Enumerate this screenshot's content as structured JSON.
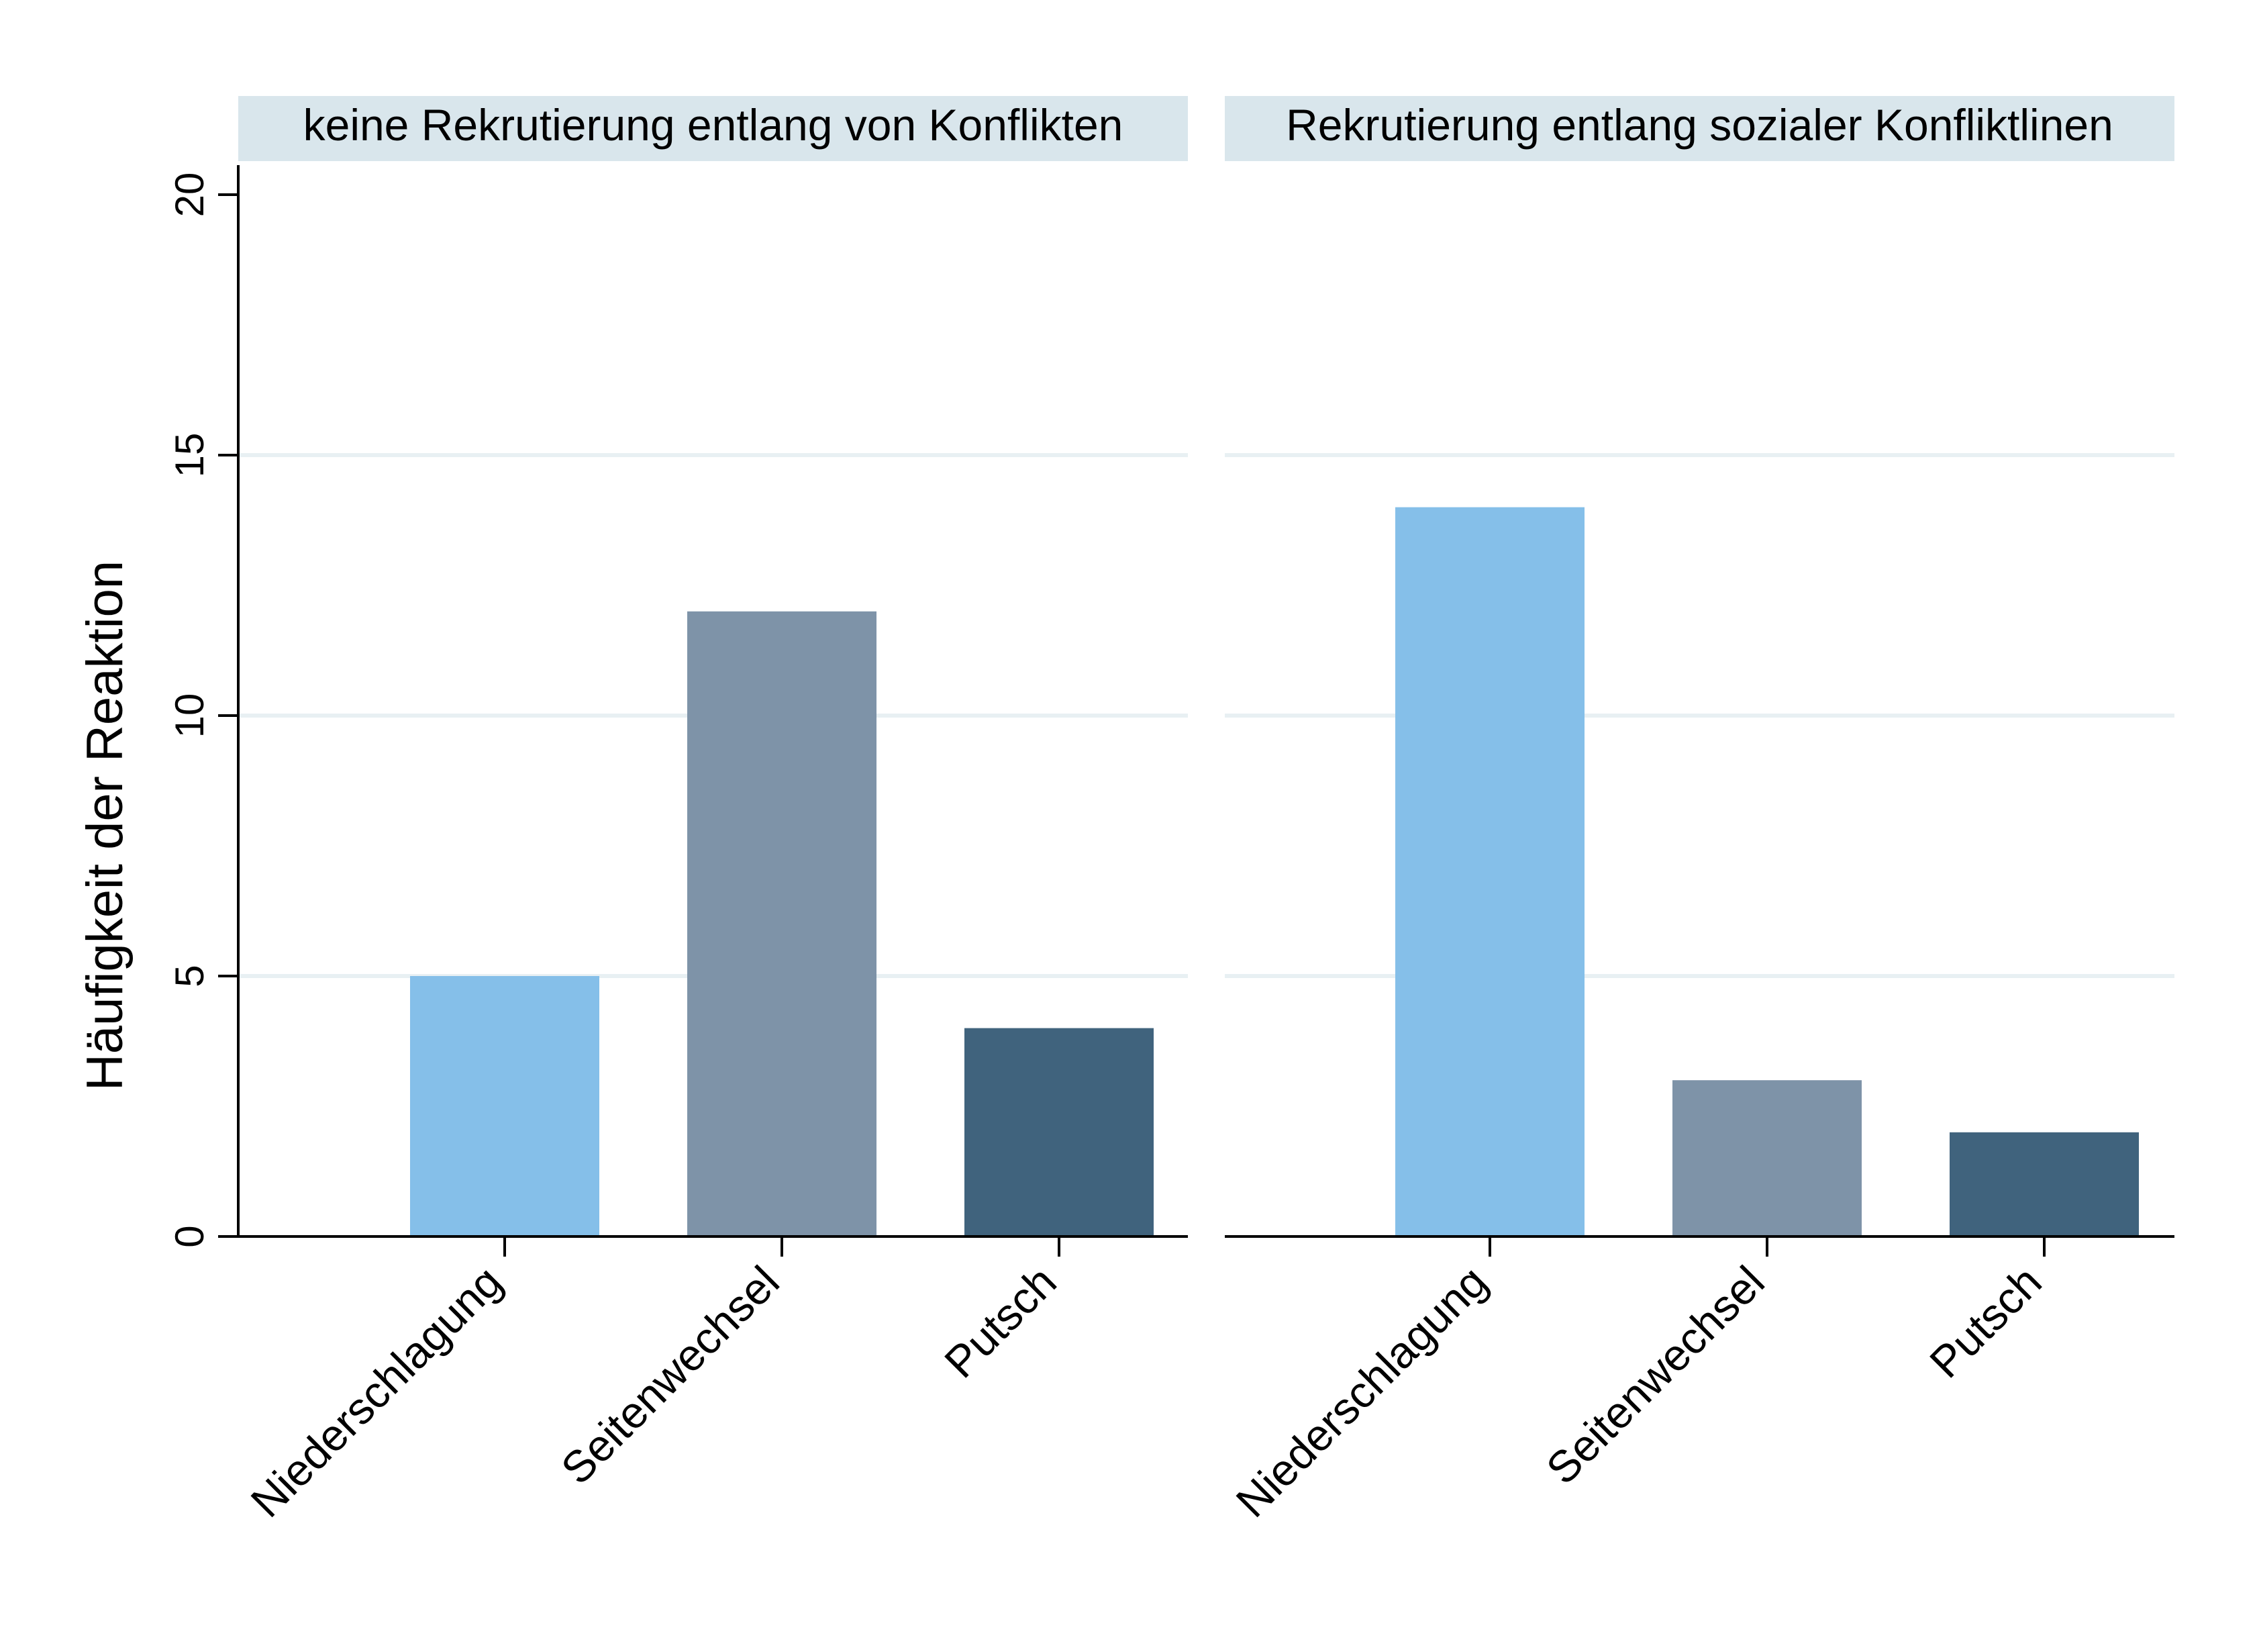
{
  "chart_data": {
    "type": "bar",
    "ylabel": "Häufigkeit der Reaktion",
    "ylim": [
      0,
      20
    ],
    "yticks": [
      0,
      5,
      10,
      15,
      20
    ],
    "grid": true,
    "categories": [
      "Niederschlagung",
      "Seitenwechsel",
      "Putsch"
    ],
    "colors": {
      "Niederschlagung": "#85bfe9",
      "Seitenwechsel": "#7e93a8",
      "Putsch": "#40637d"
    },
    "header_color": "#d9e6ec",
    "grid_color": "#e8f0f3",
    "panels": [
      {
        "title": "keine Rekrutierung entlang von Konflikten",
        "values": [
          5,
          12,
          4
        ]
      },
      {
        "title": "Rekrutierung entlang sozialer Konfliktlinen",
        "values": [
          14,
          3,
          2
        ]
      }
    ]
  }
}
